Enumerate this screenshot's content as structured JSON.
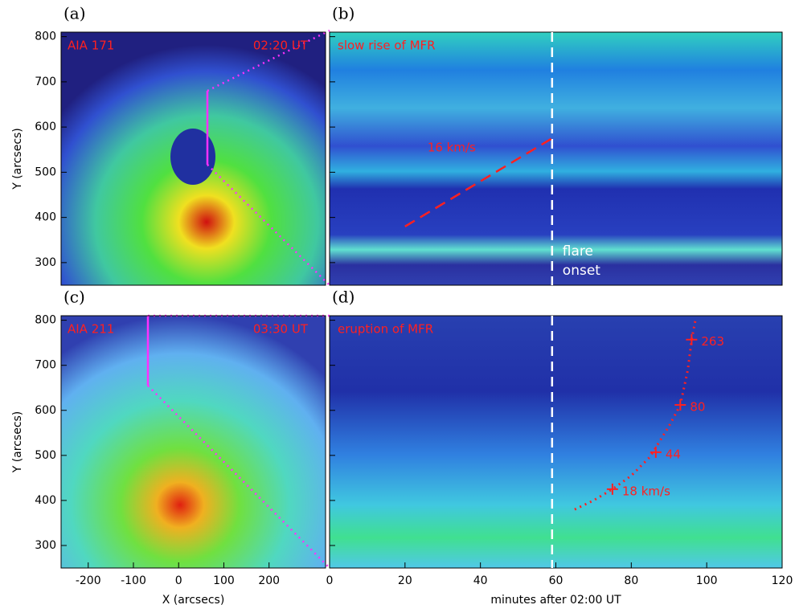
{
  "chart_data": [
    {
      "type": "image",
      "panel_label": "(a)",
      "instrument": "AIA 171",
      "time": "02:20 UT",
      "xlim": [
        -260,
        325
      ],
      "ylim": [
        250,
        810
      ],
      "yticks": [
        300,
        400,
        500,
        600,
        700,
        800
      ],
      "ylabel": "Y (arcsecs)"
    },
    {
      "type": "time-distance",
      "panel_label": "(b)",
      "title": "slow rise of MFR",
      "xlim": [
        0,
        120
      ],
      "ylim": [
        250,
        810
      ],
      "flare_onset": 59,
      "onset_label": [
        "flare",
        "onset"
      ],
      "fit": {
        "x": [
          20,
          59
        ],
        "y": [
          380,
          575
        ],
        "label": "16 km/s"
      }
    },
    {
      "type": "image",
      "panel_label": "(c)",
      "instrument": "AIA 211",
      "time": "03:30 UT",
      "xlim": [
        -260,
        325
      ],
      "ylim": [
        250,
        810
      ],
      "xticks": [
        -200,
        -100,
        0,
        100,
        200
      ],
      "yticks": [
        300,
        400,
        500,
        600,
        700,
        800
      ],
      "xlabel": "X (arcsecs)",
      "ylabel": "Y (arcsecs)"
    },
    {
      "type": "time-distance",
      "panel_label": "(d)",
      "title": "eruption of MFR",
      "xlim": [
        0,
        120
      ],
      "ylim": [
        250,
        810
      ],
      "xticks": [
        0,
        20,
        40,
        60,
        80,
        100,
        120
      ],
      "xlabel": "minutes after 02:00 UT",
      "flare_onset": 59,
      "curve": {
        "x": [
          65,
          70,
          75,
          80,
          85,
          90,
          93,
          95,
          96,
          97
        ],
        "y": [
          380,
          400,
          425,
          455,
          497,
          565,
          612,
          690,
          757,
          800
        ]
      },
      "points": {
        "x": [
          75,
          86.5,
          93,
          96
        ],
        "y": [
          425,
          507,
          612,
          757
        ],
        "labels": [
          "18 km/s",
          "44",
          "80",
          "263"
        ]
      }
    }
  ]
}
